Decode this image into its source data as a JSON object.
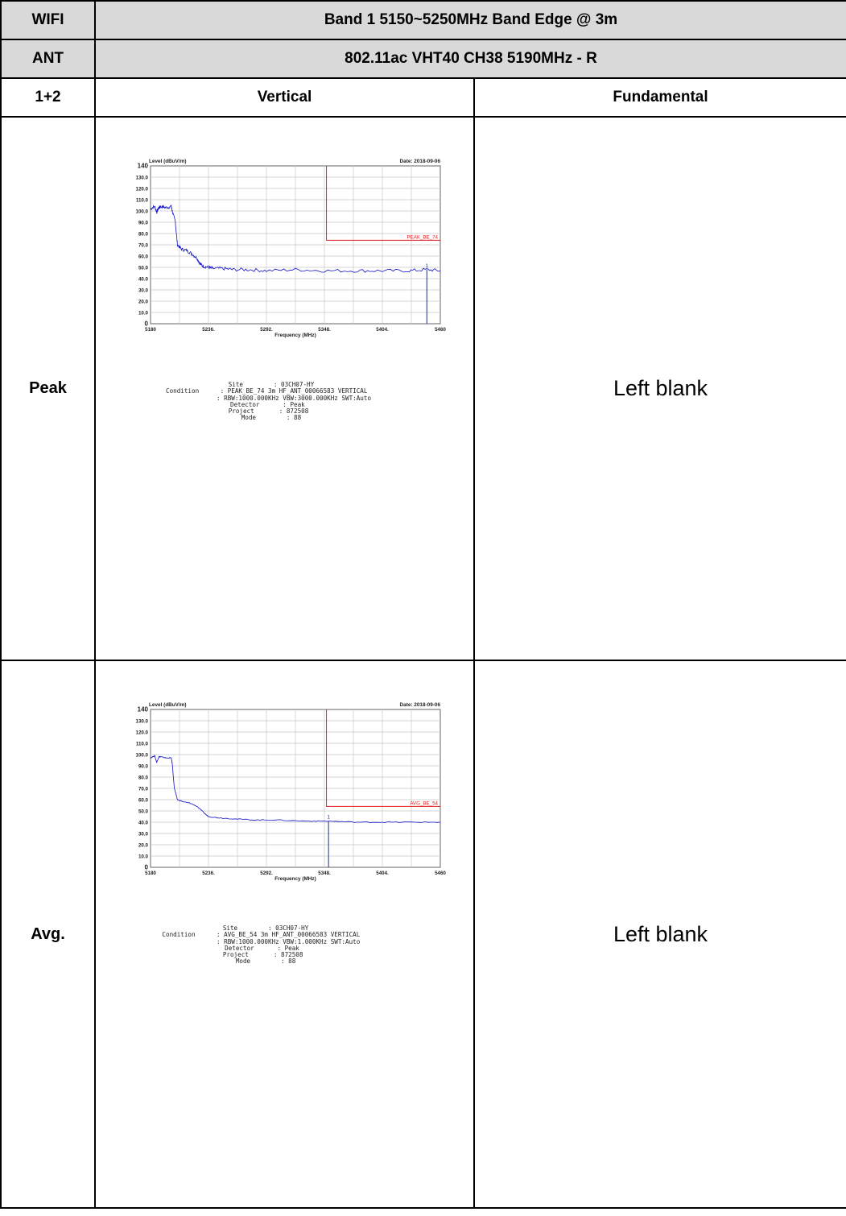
{
  "header": {
    "row1": {
      "left": "WIFI",
      "right": "Band 1 5150~5250MHz Band Edge @ 3m"
    },
    "row2": {
      "left": "ANT",
      "right": "802.11ac VHT40 CH38 5190MHz - R"
    },
    "row3": {
      "left": "1+2",
      "mid": "Vertical",
      "right": "Fundamental"
    }
  },
  "rows": [
    {
      "label": "Peak",
      "blank": "Left blank"
    },
    {
      "label": "Avg.",
      "blank": "Left blank"
    }
  ],
  "chart_data": [
    {
      "type": "line",
      "title": "",
      "ylabel": "Level (dBuV/m)",
      "xlabel": "Frequency (MHz)",
      "date": "Date: 2018-09-06",
      "xlim": [
        5180,
        5460
      ],
      "ylim": [
        0,
        140
      ],
      "xticks": [
        "5180",
        "5236.",
        "5292.",
        "5348.",
        "5404.",
        "5460"
      ],
      "yticks": [
        "0",
        "10.0",
        "20.0",
        "30.0",
        "40.0",
        "50.0",
        "60.0",
        "70.0",
        "80.0",
        "90.0",
        "100.0",
        "110.0",
        "120.0",
        "130.0",
        "140"
      ],
      "grid": true,
      "limit_label": "PEAK_BE_74",
      "limit": {
        "x_start": 5350,
        "y": 74
      },
      "marker": {
        "label": "1",
        "x": 5447,
        "y": 48
      },
      "series": [
        {
          "color": "#1010c8",
          "x": [
            5180,
            5184,
            5186,
            5188,
            5190,
            5195,
            5200,
            5201,
            5204,
            5206,
            5210,
            5215,
            5220,
            5225,
            5228,
            5231,
            5236,
            5240,
            5250,
            5260,
            5275,
            5292,
            5320,
            5348,
            5380,
            5404,
            5430,
            5447,
            5460
          ],
          "y": [
            102,
            104,
            99,
            103,
            104,
            103,
            104,
            100,
            90,
            70,
            66,
            65,
            62,
            58,
            53,
            51,
            50,
            49,
            49,
            48,
            48,
            47,
            48,
            47,
            47,
            47,
            47,
            48,
            47
          ]
        }
      ],
      "meta": [
        {
          "k": "Site",
          "v": ": 03CH07-HY"
        },
        {
          "k": "Condition",
          "v": ": PEAK_BE_74 3m HF_ANT_00066583 VERTICAL"
        },
        {
          "k": "",
          "v": ": RBW:1000.000KHz VBW:3000.000KHz SWT:Auto"
        },
        {
          "k": "Detector",
          "v": ": Peak"
        },
        {
          "k": "Project",
          "v": ": 872508"
        },
        {
          "k": "Mode",
          "v": ": 88"
        }
      ]
    },
    {
      "type": "line",
      "title": "",
      "ylabel": "Level (dBuV/m)",
      "xlabel": "Frequency (MHz)",
      "date": "Date: 2018-09-06",
      "xlim": [
        5180,
        5460
      ],
      "ylim": [
        0,
        140
      ],
      "xticks": [
        "5180",
        "5236.",
        "5292.",
        "5348.",
        "5404.",
        "5460"
      ],
      "yticks": [
        "0",
        "10.0",
        "20.0",
        "30.0",
        "40.0",
        "50.0",
        "60.0",
        "70.0",
        "80.0",
        "90.0",
        "100.0",
        "110.0",
        "120.0",
        "130.0",
        "140"
      ],
      "grid": true,
      "limit_label": "AVG_BE_54",
      "limit": {
        "x_start": 5350,
        "y": 54
      },
      "marker": {
        "label": "1",
        "x": 5352,
        "y": 41
      },
      "series": [
        {
          "color": "#1010c8",
          "x": [
            5180,
            5184,
            5186,
            5188,
            5190,
            5195,
            5200,
            5201,
            5203,
            5206,
            5212,
            5218,
            5225,
            5232,
            5236,
            5245,
            5260,
            5280,
            5300,
            5330,
            5350,
            5380,
            5404,
            5430,
            5460
          ],
          "y": [
            97,
            99,
            93,
            98,
            98,
            97,
            97,
            92,
            70,
            60,
            58,
            57,
            54,
            48,
            45,
            44,
            43,
            42,
            42,
            41,
            41,
            40,
            40,
            40,
            40
          ]
        }
      ],
      "meta": [
        {
          "k": "Site",
          "v": ": 03CH07-HY"
        },
        {
          "k": "Condition",
          "v": ": AVG_BE_54 3m HF_ANT_00066583 VERTICAL"
        },
        {
          "k": "",
          "v": ": RBW:1000.000KHz VBW:1.000KHz SWT:Auto"
        },
        {
          "k": "Detector",
          "v": ": Peak"
        },
        {
          "k": "Project",
          "v": ": 872508"
        },
        {
          "k": "Mode",
          "v": ": 88"
        }
      ]
    }
  ]
}
